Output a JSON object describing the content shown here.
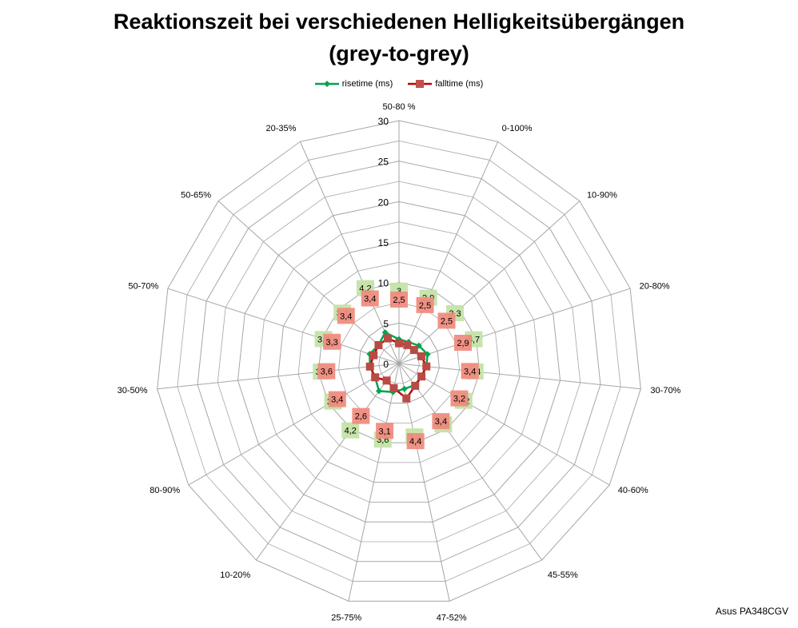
{
  "title_line1": "Reaktionszeit bei verschiedenen Helligkeitsübergängen",
  "title_line2": "(grey-to-grey)",
  "footer": "Asus PA348CGV",
  "colors": {
    "rise": "#00a550",
    "fall": "#c0504d",
    "rise_label_bg": "#c4e3a6",
    "fall_label_bg": "#f08c80",
    "grid": "#a6a6a6"
  },
  "chart_data": {
    "type": "radar",
    "categories": [
      "50-80 %",
      "0-100%",
      "10-90%",
      "20-80%",
      "30-70%",
      "40-60%",
      "45-55%",
      "47-52%",
      "25-75%",
      "10-20%",
      "80-90%",
      "30-50%",
      "50-70%",
      "50-65%",
      "20-35%"
    ],
    "r_range": [
      0,
      30
    ],
    "r_ticks": [
      0,
      5,
      10,
      15,
      20,
      25,
      30
    ],
    "series": [
      {
        "name": "risetime (ms)",
        "labels": [
          "3",
          "2,9",
          "3,3",
          "3,7",
          "3,4",
          "3,2",
          "3,3",
          "3,2",
          "3,6",
          "4,2",
          "3,4",
          "3,6",
          "3,8",
          "3,4",
          "4,2"
        ],
        "values": [
          3,
          2.9,
          3.3,
          3.7,
          3.4,
          3.2,
          3.3,
          3.2,
          3.6,
          4.2,
          3.4,
          3.6,
          3.8,
          3.4,
          4.2
        ]
      },
      {
        "name": "falltime (ms)",
        "labels": [
          "2,5",
          "2,5",
          "2,5",
          "2,9",
          "3,4",
          "3,2",
          "3,4",
          "4,4",
          "3,1",
          "2,6",
          "3,4",
          "3,6",
          "3,3",
          "3,4",
          "3,4"
        ],
        "values": [
          2.5,
          2.5,
          2.5,
          2.9,
          3.4,
          3.2,
          3.4,
          4.4,
          3.1,
          2.6,
          3.4,
          3.6,
          3.3,
          3.4,
          3.4
        ]
      }
    ],
    "legend_position": "top"
  }
}
